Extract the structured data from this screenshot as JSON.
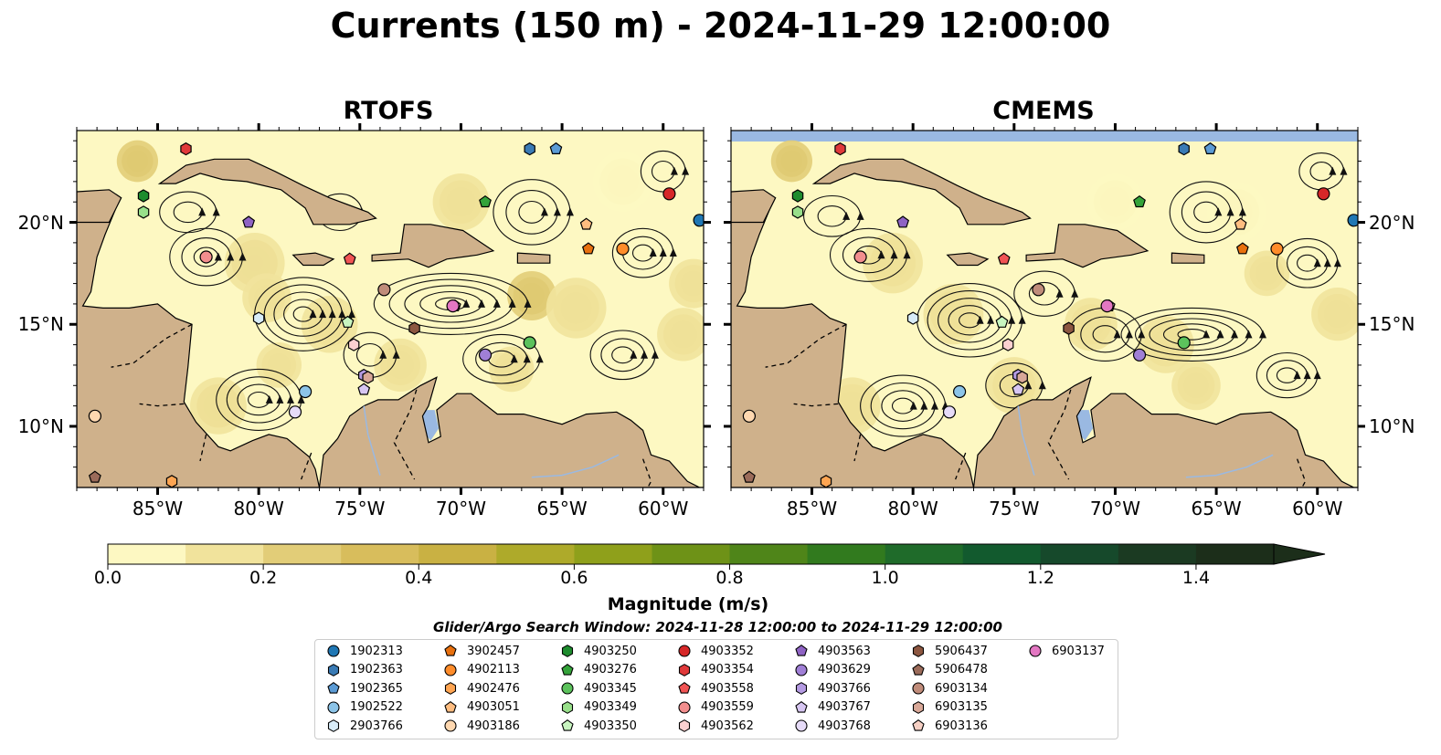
{
  "title": "Currents (150 m) - 2024-11-29 12:00:00",
  "panels": [
    {
      "title": "RTOFS"
    },
    {
      "title": "CMEMS"
    }
  ],
  "chart_data": {
    "type": "heatmap",
    "title": "Currents (150 m) - 2024-11-29 12:00:00",
    "subplots": [
      "RTOFS",
      "CMEMS"
    ],
    "xlim": [
      -89,
      -58
    ],
    "ylim": [
      7,
      24.5
    ],
    "x_ticks": [
      -85,
      -80,
      -75,
      -70,
      -65,
      -60
    ],
    "x_tick_labels": [
      "85°W",
      "80°W",
      "75°W",
      "70°W",
      "65°W",
      "60°W"
    ],
    "y_ticks": [
      10,
      15,
      20
    ],
    "y_tick_labels": [
      "10°N",
      "15°N",
      "20°N"
    ],
    "colorbar": {
      "label": "Magnitude (m/s)",
      "range": [
        0,
        1.5
      ],
      "extend": "max",
      "ticks": [
        0.0,
        0.2,
        0.4,
        0.6,
        0.8,
        1.0,
        1.2,
        1.4
      ],
      "tick_labels": [
        "0.0",
        "0.2",
        "0.4",
        "0.6",
        "0.8",
        "1.0",
        "1.2",
        "1.4"
      ],
      "colors": [
        "#fdf8c2",
        "#f1e39c",
        "#e2cd78",
        "#d8bd5c",
        "#c9b143",
        "#aeaa2a",
        "#8fa01b",
        "#6e9217",
        "#4f8519",
        "#317a1e",
        "#1f6b2a",
        "#125a2e",
        "#16492b",
        "#1b3a22",
        "#1c2e1a"
      ]
    },
    "search_window": "Glider/Argo Search Window: 2024-11-28 12:00:00 to 2024-11-29 12:00:00",
    "floats": [
      {
        "id": "1902313",
        "marker": "circle",
        "color": "#1f77b4",
        "lon": -58.2,
        "lat": 20.1
      },
      {
        "id": "1902363",
        "marker": "hexagon",
        "color": "#3a7bb5",
        "lon": -66.6,
        "lat": 23.6
      },
      {
        "id": "1902365",
        "marker": "pentagon",
        "color": "#5b9bd5",
        "lon": -65.3,
        "lat": 23.6
      },
      {
        "id": "1902522",
        "marker": "circle",
        "color": "#8cc4e8",
        "lon": -77.7,
        "lat": 11.7
      },
      {
        "id": "2903766",
        "marker": "hexagon",
        "color": "#d8ecf8",
        "lon": -80.0,
        "lat": 15.3
      },
      {
        "id": "3902457",
        "marker": "pentagon",
        "color": "#e8700e",
        "lon": -63.7,
        "lat": 18.7
      },
      {
        "id": "4902113",
        "marker": "circle",
        "color": "#ff8c2a",
        "lon": -62.0,
        "lat": 18.7
      },
      {
        "id": "4902476",
        "marker": "hexagon",
        "color": "#ffa552",
        "lon": -84.3,
        "lat": 7.3
      },
      {
        "id": "4903051",
        "marker": "pentagon",
        "color": "#ffbd80",
        "lon": -63.8,
        "lat": 19.9
      },
      {
        "id": "4903186",
        "marker": "circle",
        "color": "#ffd8b0",
        "lon": -88.1,
        "lat": 10.5
      },
      {
        "id": "4903250",
        "marker": "hexagon",
        "color": "#1e8c2e",
        "lon": -85.7,
        "lat": 21.3
      },
      {
        "id": "4903276",
        "marker": "pentagon",
        "color": "#34a33a",
        "lon": -68.8,
        "lat": 21.0
      },
      {
        "id": "4903345",
        "marker": "circle",
        "color": "#5cc25c",
        "lon": -66.6,
        "lat": 14.1
      },
      {
        "id": "4903349",
        "marker": "hexagon",
        "color": "#98df8a",
        "lon": -85.7,
        "lat": 20.5
      },
      {
        "id": "4903350",
        "marker": "pentagon",
        "color": "#c8f5c0",
        "lon": -75.6,
        "lat": 15.1
      },
      {
        "id": "4903352",
        "marker": "circle",
        "color": "#d62728",
        "lon": -59.7,
        "lat": 21.4
      },
      {
        "id": "4903354",
        "marker": "hexagon",
        "color": "#e0393a",
        "lon": -83.6,
        "lat": 23.6
      },
      {
        "id": "4903558",
        "marker": "pentagon",
        "color": "#f15454",
        "lon": -75.5,
        "lat": 18.2
      },
      {
        "id": "4903559",
        "marker": "circle",
        "color": "#f28e8e",
        "lon": -82.6,
        "lat": 18.3
      },
      {
        "id": "4903562",
        "marker": "hexagon",
        "color": "#fbd0d0",
        "lon": -75.3,
        "lat": 14.0
      },
      {
        "id": "4903563",
        "marker": "pentagon",
        "color": "#8f63c4",
        "lon": -80.5,
        "lat": 20.0
      },
      {
        "id": "4903629",
        "marker": "circle",
        "color": "#a07fd6",
        "lon": -68.8,
        "lat": 13.5
      },
      {
        "id": "4903766",
        "marker": "hexagon",
        "color": "#b49ae2",
        "lon": -74.8,
        "lat": 12.5
      },
      {
        "id": "4903767",
        "marker": "pentagon",
        "color": "#d7c6f2",
        "lon": -74.8,
        "lat": 11.8
      },
      {
        "id": "4903768",
        "marker": "circle",
        "color": "#e6dbf8",
        "lon": -78.2,
        "lat": 10.7
      },
      {
        "id": "5906437",
        "marker": "hexagon",
        "color": "#8c5640",
        "lon": -72.3,
        "lat": 14.8
      },
      {
        "id": "5906478",
        "marker": "pentagon",
        "color": "#9b6b5a",
        "lon": -88.1,
        "lat": 7.5
      },
      {
        "id": "6903134",
        "marker": "circle",
        "color": "#c08c7a",
        "lon": -73.8,
        "lat": 16.7
      },
      {
        "id": "6903135",
        "marker": "hexagon",
        "color": "#d9a898",
        "lon": -74.6,
        "lat": 12.4
      },
      {
        "id": "6903136",
        "marker": "pentagon",
        "color": "#f6d0c4",
        "lon": -70.3,
        "lat": 15.9
      },
      {
        "id": "6903137",
        "marker": "circle",
        "color": "#e377c2",
        "lon": -70.4,
        "lat": 15.9
      }
    ]
  },
  "colors": {
    "land": "#cfb18b",
    "water_low": "#fdf8c2",
    "lake": "#9ab9e2",
    "coast": "#000000"
  }
}
